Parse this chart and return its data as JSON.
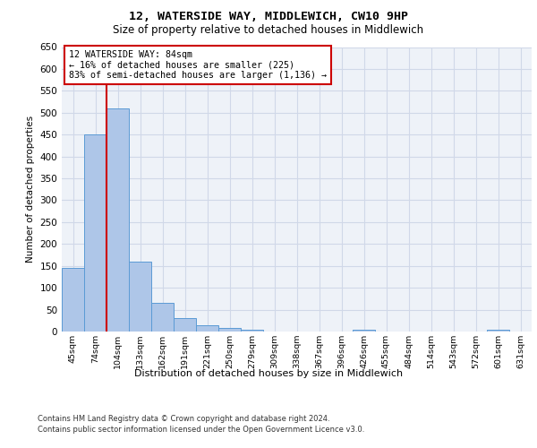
{
  "title1": "12, WATERSIDE WAY, MIDDLEWICH, CW10 9HP",
  "title2": "Size of property relative to detached houses in Middlewich",
  "xlabel": "Distribution of detached houses by size in Middlewich",
  "ylabel": "Number of detached properties",
  "footer1": "Contains HM Land Registry data © Crown copyright and database right 2024.",
  "footer2": "Contains public sector information licensed under the Open Government Licence v3.0.",
  "annotation_line1": "12 WATERSIDE WAY: 84sqm",
  "annotation_line2": "← 16% of detached houses are smaller (225)",
  "annotation_line3": "83% of semi-detached houses are larger (1,136) →",
  "bins": [
    "45sqm",
    "74sqm",
    "104sqm",
    "133sqm",
    "162sqm",
    "191sqm",
    "221sqm",
    "250sqm",
    "279sqm",
    "309sqm",
    "338sqm",
    "367sqm",
    "396sqm",
    "426sqm",
    "455sqm",
    "484sqm",
    "514sqm",
    "543sqm",
    "572sqm",
    "601sqm",
    "631sqm"
  ],
  "values": [
    145,
    450,
    510,
    160,
    65,
    30,
    15,
    8,
    5,
    0,
    0,
    0,
    0,
    5,
    0,
    0,
    0,
    0,
    0,
    5,
    0
  ],
  "bar_color": "#aec6e8",
  "bar_edge_color": "#5b9bd5",
  "grid_color": "#d0d8e8",
  "red_line_x": 1.5,
  "red_color": "#cc0000",
  "ylim": [
    0,
    650
  ],
  "yticks": [
    0,
    50,
    100,
    150,
    200,
    250,
    300,
    350,
    400,
    450,
    500,
    550,
    600,
    650
  ],
  "bg_color": "#eef2f8"
}
